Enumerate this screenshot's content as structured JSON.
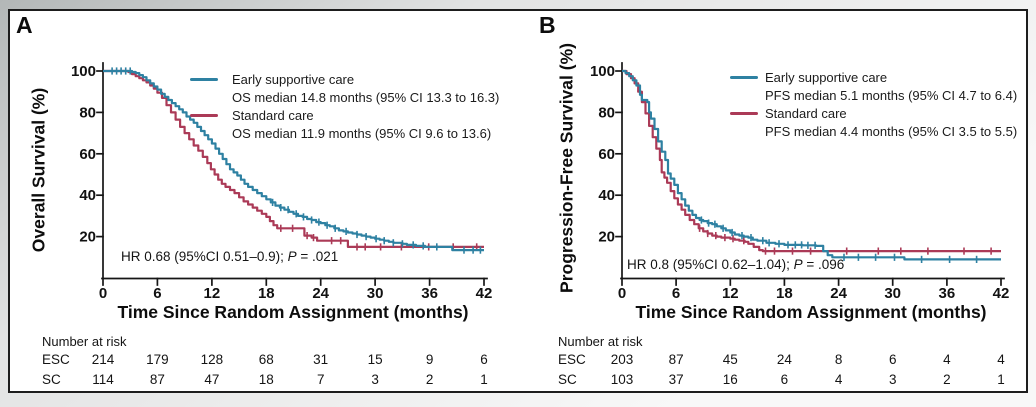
{
  "chart_data": [
    {
      "type": "line",
      "kind": "kaplan-meier",
      "panel_label": "A",
      "ylabel": "Overall Survival (%)",
      "xlabel": "Time Since Random Assignment (months)",
      "xlim": [
        0,
        42
      ],
      "ylim": [
        0,
        100
      ],
      "xticks": [
        0,
        6,
        12,
        18,
        24,
        30,
        36,
        42
      ],
      "yticks": [
        20,
        40,
        60,
        80,
        100
      ],
      "grid": false,
      "legend_position": "upper-right-inside",
      "annotation": {
        "hr": "HR 0.68 (95%CI 0.51–0.9); ",
        "p_italic": "P",
        "p_rest": " = .021"
      },
      "series": [
        {
          "name": "Early supportive care",
          "subtitle": "OS median 14.8 months (95% CI 13.3 to 16.3)",
          "color": "#2e81a2",
          "points": [
            [
              0,
              100
            ],
            [
              3.2,
              99.5
            ],
            [
              3.6,
              99
            ],
            [
              4,
              98
            ],
            [
              4.4,
              97
            ],
            [
              4.8,
              95.5
            ],
            [
              5.2,
              94
            ],
            [
              5.6,
              92.5
            ],
            [
              6,
              91
            ],
            [
              6.4,
              89
            ],
            [
              6.8,
              87.5
            ],
            [
              7.2,
              86
            ],
            [
              7.6,
              84.5
            ],
            [
              8,
              83
            ],
            [
              8.4,
              81.5
            ],
            [
              8.8,
              80
            ],
            [
              9.2,
              78
            ],
            [
              9.6,
              76.5
            ],
            [
              10,
              75
            ],
            [
              10.4,
              73
            ],
            [
              10.8,
              71
            ],
            [
              11.2,
              69
            ],
            [
              11.6,
              67
            ],
            [
              12,
              65
            ],
            [
              12.4,
              62.5
            ],
            [
              12.8,
              60
            ],
            [
              13.2,
              57.5
            ],
            [
              13.6,
              55
            ],
            [
              14,
              52.5
            ],
            [
              14.4,
              51
            ],
            [
              14.8,
              49.5
            ],
            [
              15.2,
              47.5
            ],
            [
              15.6,
              45.5
            ],
            [
              16,
              44
            ],
            [
              16.5,
              42.5
            ],
            [
              17,
              41
            ],
            [
              17.5,
              39.5
            ],
            [
              18,
              38
            ],
            [
              18.5,
              36.5
            ],
            [
              19,
              35
            ],
            [
              19.5,
              34
            ],
            [
              20,
              33
            ],
            [
              20.5,
              32
            ],
            [
              21,
              31
            ],
            [
              21.5,
              30
            ],
            [
              22,
              29.5
            ],
            [
              22.5,
              28.5
            ],
            [
              23,
              28
            ],
            [
              23.5,
              27
            ],
            [
              24,
              26.5
            ],
            [
              24.5,
              25.5
            ],
            [
              25,
              25
            ],
            [
              25.5,
              24
            ],
            [
              26,
              23
            ],
            [
              26.5,
              22.5
            ],
            [
              27,
              22
            ],
            [
              27.5,
              21.5
            ],
            [
              28,
              21
            ],
            [
              28.5,
              20.5
            ],
            [
              29,
              20
            ],
            [
              29.5,
              19.5
            ],
            [
              30,
              19
            ],
            [
              30.5,
              18.5
            ],
            [
              31,
              18
            ],
            [
              31.5,
              17.5
            ],
            [
              32,
              17
            ],
            [
              33,
              16.5
            ],
            [
              33.5,
              16
            ],
            [
              34.5,
              15.5
            ],
            [
              35.5,
              15
            ],
            [
              38.5,
              13.5
            ],
            [
              42,
              13.5
            ]
          ],
          "censors": [
            1.0,
            1.5,
            2.0,
            2.5,
            3.0,
            18.7,
            19.6,
            20.4,
            21.3,
            22.1,
            23.0,
            23.8,
            24.7,
            25.6,
            26.8,
            28.0,
            29.0,
            30.1,
            31.0,
            32.0,
            33.0,
            34.2,
            35.3,
            36.8,
            39.8,
            40.8,
            41.6
          ]
        },
        {
          "name": "Standard care",
          "subtitle": "OS median 11.9 months (95% CI 9.6 to 13.6)",
          "color": "#ab3a57",
          "points": [
            [
              0,
              100
            ],
            [
              2.8,
              99.5
            ],
            [
              3.2,
              98.5
            ],
            [
              3.6,
              97.5
            ],
            [
              4,
              96.5
            ],
            [
              4.4,
              95.5
            ],
            [
              4.8,
              94.5
            ],
            [
              5.2,
              93
            ],
            [
              5.6,
              91.5
            ],
            [
              6,
              89.5
            ],
            [
              6.5,
              87
            ],
            [
              7,
              83.5
            ],
            [
              7.5,
              80
            ],
            [
              8,
              76.5
            ],
            [
              8.5,
              73
            ],
            [
              9,
              70
            ],
            [
              9.5,
              67
            ],
            [
              10,
              64
            ],
            [
              10.5,
              61.5
            ],
            [
              11,
              58.5
            ],
            [
              11.5,
              55.5
            ],
            [
              11.9,
              52.5
            ],
            [
              12.3,
              50
            ],
            [
              12.7,
              47.5
            ],
            [
              13.1,
              45.5
            ],
            [
              13.5,
              44
            ],
            [
              14,
              42.5
            ],
            [
              14.5,
              41
            ],
            [
              15,
              39
            ],
            [
              15.5,
              37
            ],
            [
              16,
              35.5
            ],
            [
              16.5,
              34
            ],
            [
              17,
              32.5
            ],
            [
              17.5,
              31
            ],
            [
              18,
              29.5
            ],
            [
              18.4,
              27.5
            ],
            [
              18.8,
              25.5
            ],
            [
              19.2,
              24
            ],
            [
              21.8,
              24
            ],
            [
              22.2,
              20.5
            ],
            [
              23,
              19.5
            ],
            [
              23.6,
              18
            ],
            [
              26.6,
              18
            ],
            [
              27,
              15
            ],
            [
              42,
              15
            ]
          ],
          "censors": [
            19.6,
            20.9,
            22.5,
            23.2,
            25.2,
            26.2,
            28.0,
            28.9,
            30.6,
            32.9,
            35.9,
            38.6,
            41.2
          ]
        }
      ],
      "risk_table": {
        "header": "Number at risk",
        "rows": [
          {
            "label": "ESC",
            "values": [
              214,
              179,
              128,
              68,
              31,
              15,
              9,
              6
            ]
          },
          {
            "label": "SC",
            "values": [
              114,
              87,
              47,
              18,
              7,
              3,
              2,
              1
            ]
          }
        ]
      }
    },
    {
      "type": "line",
      "kind": "kaplan-meier",
      "panel_label": "B",
      "ylabel": "Progression-Free Survival (%)",
      "xlabel": "Time Since Random Assignment (months)",
      "xlim": [
        0,
        42
      ],
      "ylim": [
        0,
        100
      ],
      "xticks": [
        0,
        6,
        12,
        18,
        24,
        30,
        36,
        42
      ],
      "yticks": [
        20,
        40,
        60,
        80,
        100
      ],
      "grid": false,
      "legend_position": "upper-right-inside",
      "annotation": {
        "hr": "HR 0.8 (95%CI 0.62–1.04); ",
        "p_italic": "P",
        "p_rest": " = .096"
      },
      "series": [
        {
          "name": "Early supportive care",
          "subtitle": "PFS median 5.1 months (95% CI 4.7 to 6.4)",
          "color": "#2e81a2",
          "points": [
            [
              0,
              100
            ],
            [
              0.4,
              99
            ],
            [
              0.8,
              97.5
            ],
            [
              1.2,
              95.5
            ],
            [
              1.6,
              93
            ],
            [
              2,
              88.5
            ],
            [
              2.2,
              86
            ],
            [
              2.8,
              85
            ],
            [
              3,
              80
            ],
            [
              3.2,
              77
            ],
            [
              3.6,
              72
            ],
            [
              4,
              66
            ],
            [
              4.4,
              61
            ],
            [
              4.8,
              57
            ],
            [
              5.1,
              50.5
            ],
            [
              5.4,
              48
            ],
            [
              5.8,
              45
            ],
            [
              6.2,
              41
            ],
            [
              6.6,
              38
            ],
            [
              7,
              35
            ],
            [
              7.4,
              32.5
            ],
            [
              7.8,
              30.5
            ],
            [
              8.2,
              29
            ],
            [
              8.6,
              28
            ],
            [
              9,
              27.5
            ],
            [
              9.5,
              26.5
            ],
            [
              10,
              26
            ],
            [
              10.5,
              25
            ],
            [
              11,
              24
            ],
            [
              11.5,
              23
            ],
            [
              12,
              22
            ],
            [
              12.5,
              21
            ],
            [
              13,
              20.5
            ],
            [
              13.5,
              20
            ],
            [
              14,
              19.5
            ],
            [
              14.5,
              18.5
            ],
            [
              15,
              18
            ],
            [
              16,
              17
            ],
            [
              17,
              16.5
            ],
            [
              18,
              16
            ],
            [
              20,
              15.8
            ],
            [
              21.5,
              15.5
            ],
            [
              22.3,
              13
            ],
            [
              22.8,
              11
            ],
            [
              23.3,
              10
            ],
            [
              30.8,
              10
            ],
            [
              31.3,
              9
            ],
            [
              42,
              9
            ]
          ],
          "censors": [
            8.8,
            9.6,
            10.3,
            11.2,
            12.2,
            13.3,
            14.3,
            15.6,
            16.3,
            17.4,
            18.4,
            19.2,
            19.9,
            20.6,
            21.4,
            24.6,
            26.2,
            28.1,
            30.2,
            33.2,
            36.3,
            39.3
          ]
        },
        {
          "name": "Standard care",
          "subtitle": "PFS median 4.4 months (95% CI 3.5 to 5.5)",
          "color": "#ab3a57",
          "points": [
            [
              0,
              100
            ],
            [
              0.5,
              98.5
            ],
            [
              1,
              96.5
            ],
            [
              1.4,
              94
            ],
            [
              1.8,
              90
            ],
            [
              2.2,
              85
            ],
            [
              2.6,
              79.5
            ],
            [
              3,
              73.5
            ],
            [
              3.4,
              68
            ],
            [
              3.8,
              62.5
            ],
            [
              4.2,
              57
            ],
            [
              4.4,
              51
            ],
            [
              4.7,
              48.5
            ],
            [
              5,
              46
            ],
            [
              5.4,
              42
            ],
            [
              5.8,
              38.5
            ],
            [
              6.2,
              35.5
            ],
            [
              6.6,
              33
            ],
            [
              7,
              30.5
            ],
            [
              7.5,
              28
            ],
            [
              8,
              26
            ],
            [
              8.5,
              24
            ],
            [
              9,
              22.5
            ],
            [
              9.5,
              21.5
            ],
            [
              10,
              20.5
            ],
            [
              10.5,
              20
            ],
            [
              11,
              19.5
            ],
            [
              12,
              19
            ],
            [
              12.5,
              18.5
            ],
            [
              13,
              18
            ],
            [
              13.6,
              17.5
            ],
            [
              14,
              16.5
            ],
            [
              14.6,
              15
            ],
            [
              15.2,
              13.5
            ],
            [
              15.6,
              13
            ],
            [
              42,
              13
            ]
          ],
          "censors": [
            8.6,
            9.5,
            10.4,
            11.4,
            12.3,
            13.5,
            15.9,
            16.9,
            18.9,
            20.9,
            24.9,
            28.4,
            30.9,
            33.9,
            37.9,
            40.9
          ]
        }
      ],
      "risk_table": {
        "header": "Number at risk",
        "rows": [
          {
            "label": "ESC",
            "values": [
              203,
              87,
              45,
              24,
              8,
              6,
              4,
              4
            ]
          },
          {
            "label": "SC",
            "values": [
              103,
              37,
              16,
              6,
              4,
              3,
              2,
              1
            ]
          }
        ]
      }
    }
  ]
}
